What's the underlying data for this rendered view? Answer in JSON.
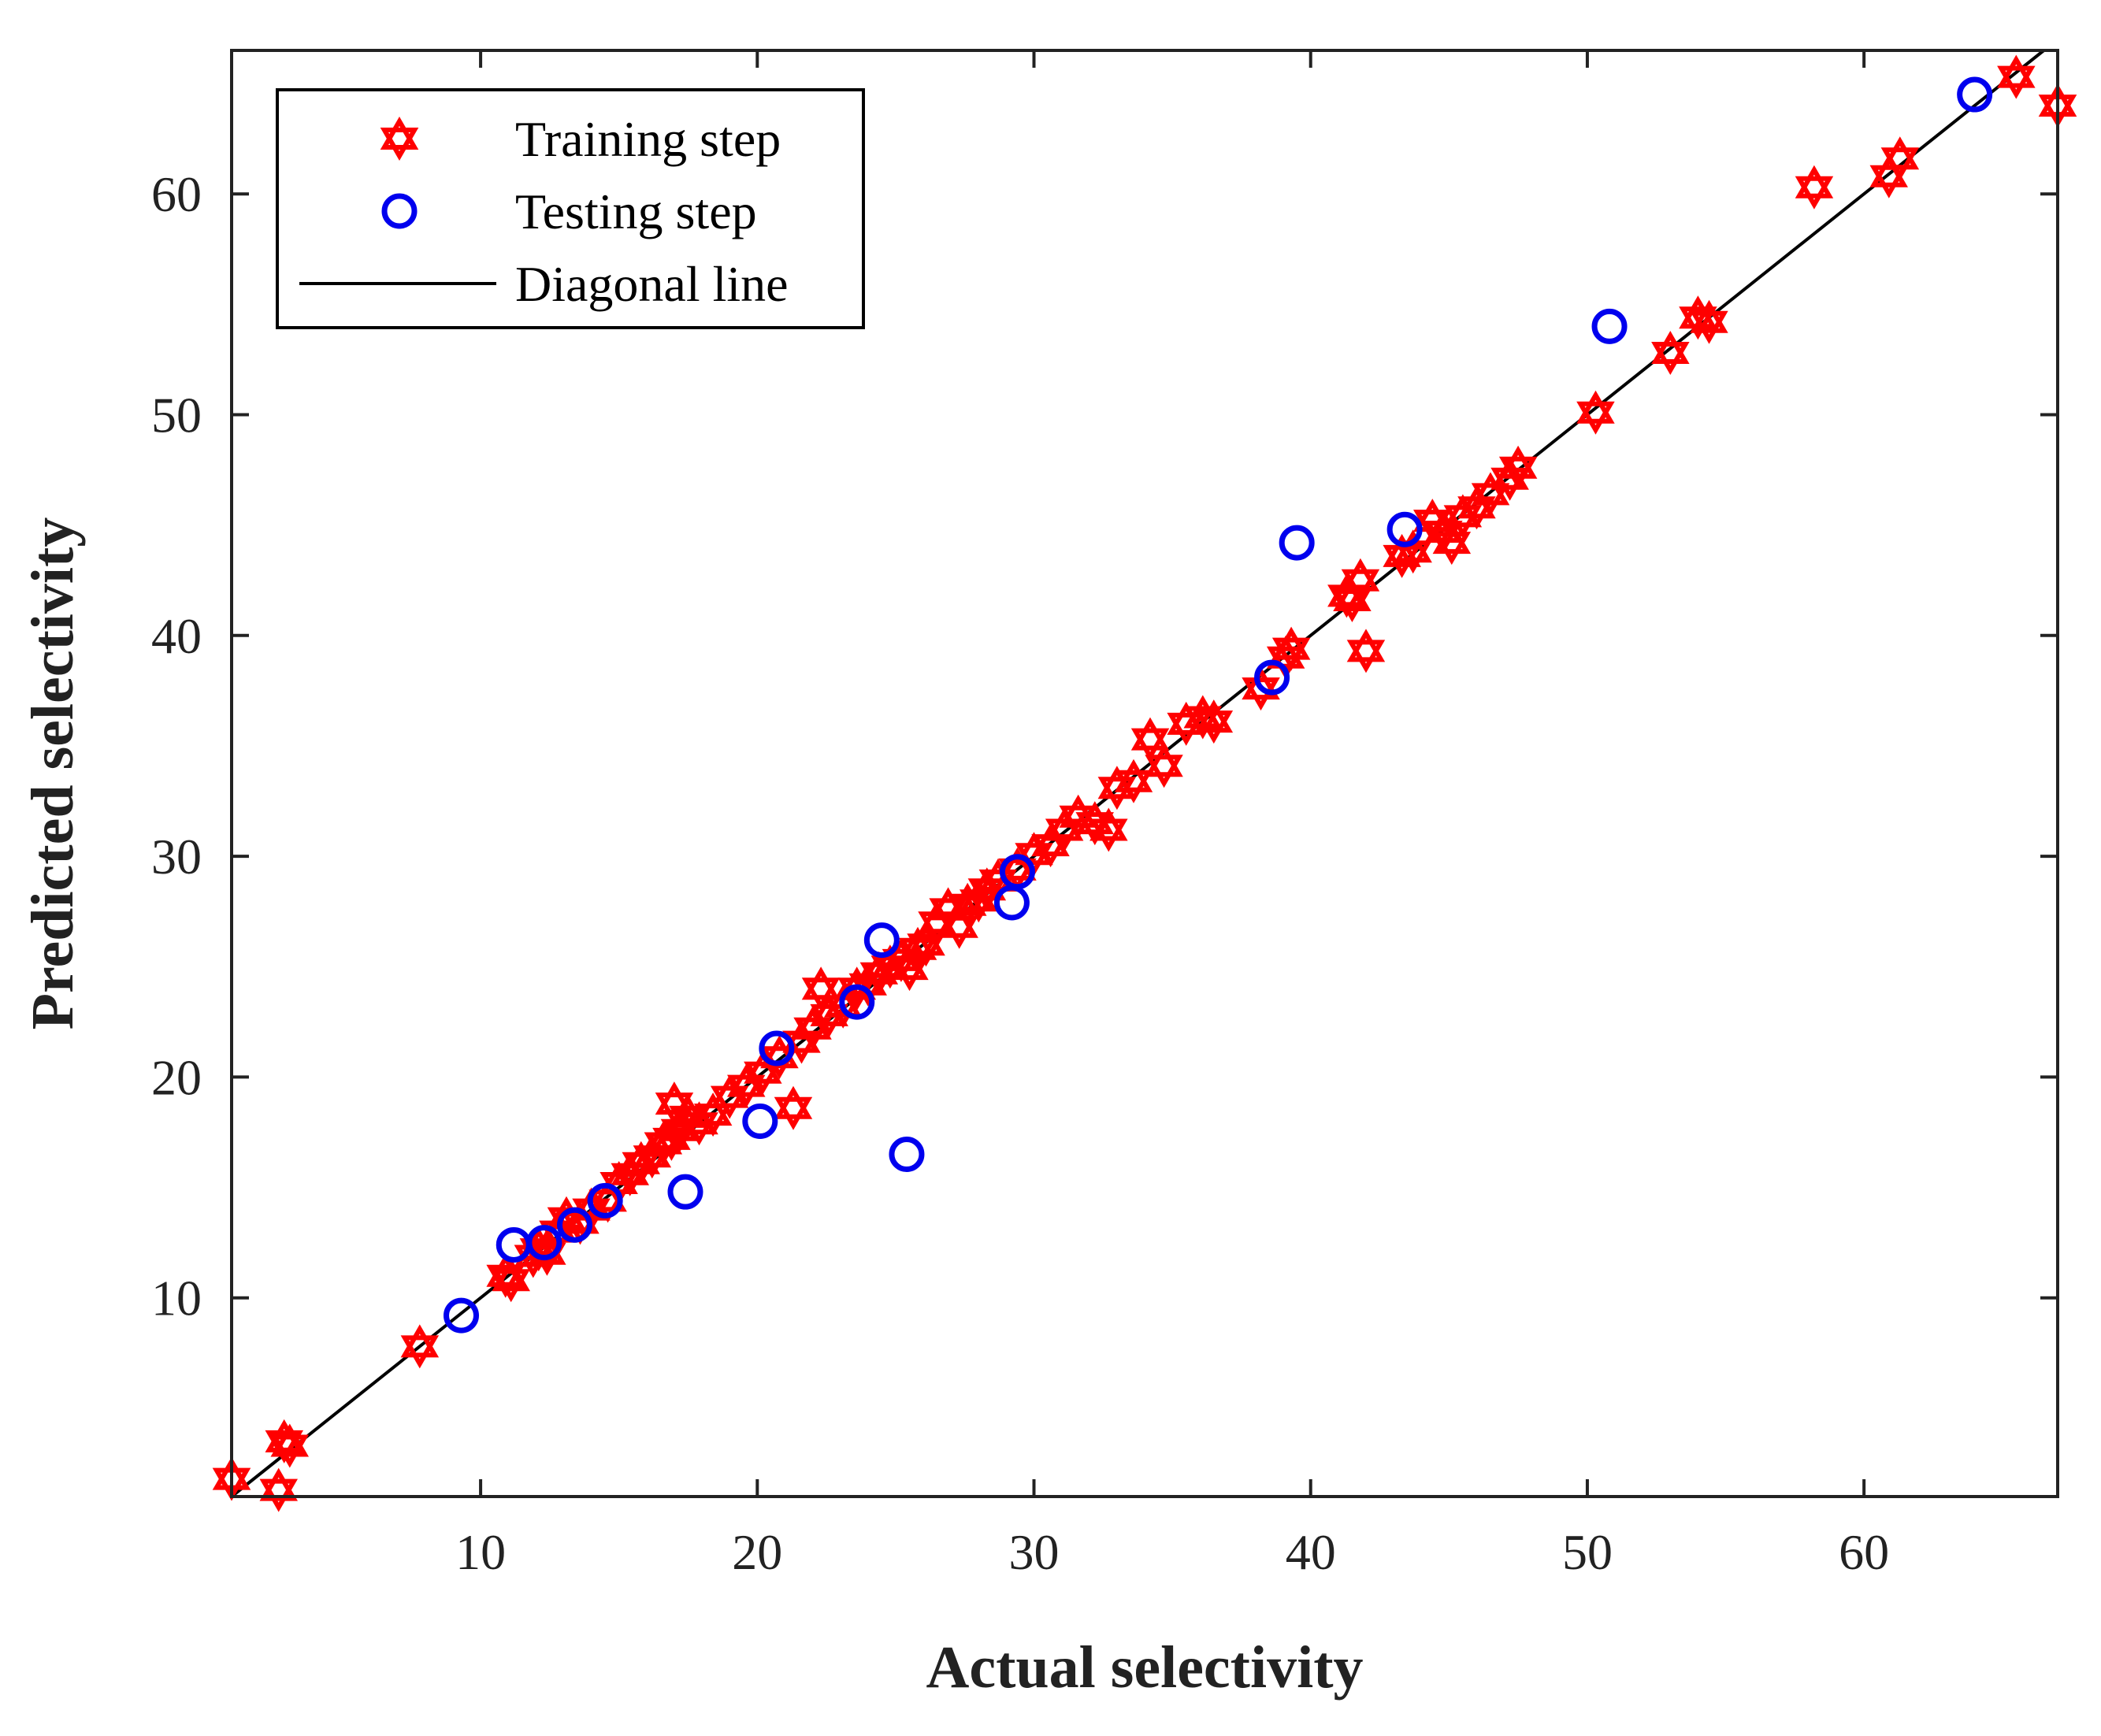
{
  "chart_data": {
    "type": "scatter",
    "xlabel": "Actual selectivity",
    "ylabel": "Predicted selectivity",
    "xlim": [
      1,
      67
    ],
    "ylim": [
      1,
      66.5
    ],
    "xticks": [
      10,
      20,
      30,
      40,
      50,
      60
    ],
    "yticks": [
      10,
      20,
      30,
      40,
      50,
      60
    ],
    "grid": false,
    "legend_position": "top-left",
    "colors": {
      "training": "#ff0000",
      "testing": "#0000ee",
      "diagonal": "#000000",
      "axes": "#222222"
    },
    "series": [
      {
        "name": "Training step",
        "marker": "hexagram",
        "x": [
          1.0,
          2.7,
          2.9,
          3.1,
          7.8,
          10.9,
          11.1,
          11.9,
          12.1,
          12.4,
          12.8,
          13.1,
          13.6,
          14.0,
          14.6,
          15.0,
          15.4,
          15.8,
          16.2,
          16.6,
          16.9,
          17.0,
          17.2,
          17.5,
          17.9,
          18.4,
          19.0,
          19.6,
          20.2,
          20.8,
          21.3,
          21.6,
          22.0,
          22.3,
          22.6,
          23.1,
          23.6,
          24.0,
          24.4,
          24.8,
          25.2,
          25.5,
          25.8,
          26.1,
          26.5,
          26.9,
          27.3,
          27.6,
          28.0,
          28.3,
          28.7,
          29.4,
          30.0,
          30.6,
          31.1,
          31.6,
          32.2,
          32.7,
          33.0,
          33.6,
          34.2,
          34.7,
          35.5,
          36.1,
          36.5,
          38.2,
          39.1,
          39.3,
          41.3,
          41.5,
          41.8,
          42.0,
          43.3,
          43.7,
          44.4,
          44.8,
          45.1,
          45.5,
          46.0,
          46.5,
          47.2,
          47.5,
          50.3,
          53.0,
          54.0,
          54.4,
          58.2,
          60.9,
          61.3,
          65.5,
          67.0
        ],
        "y": [
          1.8,
          1.3,
          3.5,
          3.3,
          7.8,
          11.0,
          10.8,
          11.9,
          12.2,
          12.0,
          13.0,
          13.6,
          13.4,
          14.0,
          14.4,
          15.2,
          15.6,
          16.1,
          16.4,
          17.0,
          17.2,
          18.8,
          17.6,
          18.2,
          17.9,
          18.3,
          19.1,
          19.6,
          20.2,
          20.9,
          18.6,
          21.6,
          22.2,
          24.0,
          22.8,
          23.2,
          24.0,
          24.2,
          24.7,
          25.0,
          25.3,
          24.9,
          25.8,
          26.0,
          27.0,
          27.6,
          26.8,
          27.8,
          28.0,
          28.5,
          28.9,
          29.4,
          30.1,
          30.5,
          31.2,
          31.8,
          31.5,
          31.2,
          33.1,
          33.4,
          35.3,
          34.1,
          36.0,
          36.3,
          36.1,
          37.6,
          39.0,
          39.4,
          41.8,
          41.6,
          42.5,
          39.3,
          43.6,
          43.8,
          45.2,
          44.7,
          44.2,
          45.4,
          45.8,
          46.4,
          47.1,
          47.6,
          50.1,
          52.8,
          54.4,
          54.2,
          60.3,
          60.8,
          61.6,
          65.3,
          64.0
        ]
      },
      {
        "name": "Testing step",
        "marker": "circle",
        "x": [
          9.3,
          11.2,
          12.3,
          13.4,
          14.5,
          17.4,
          20.1,
          20.7,
          23.6,
          24.5,
          25.4,
          29.2,
          29.4,
          38.6,
          39.5,
          43.4,
          50.8,
          64.0
        ],
        "y": [
          9.2,
          12.4,
          12.5,
          13.3,
          14.4,
          14.8,
          18.0,
          21.3,
          23.4,
          26.2,
          16.5,
          27.9,
          29.3,
          38.1,
          44.2,
          44.8,
          54.0,
          64.5
        ]
      },
      {
        "name": "Diagonal line",
        "marker": "line",
        "x": [
          1,
          67
        ],
        "y": [
          1,
          67
        ]
      }
    ]
  }
}
